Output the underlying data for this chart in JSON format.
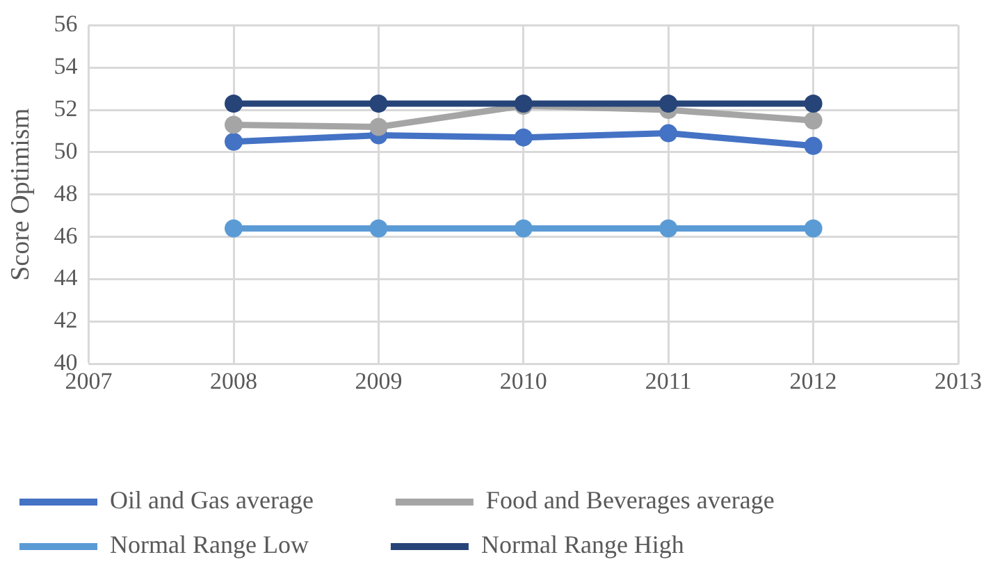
{
  "chart_data": {
    "type": "line",
    "x": [
      2008,
      2009,
      2010,
      2011,
      2012
    ],
    "ylabel": "Score Optimism",
    "xlim": [
      2007,
      2013
    ],
    "xticks": [
      2007,
      2008,
      2009,
      2010,
      2011,
      2012,
      2013
    ],
    "ylim": [
      40,
      56
    ],
    "yticks": [
      40,
      42,
      44,
      46,
      48,
      50,
      52,
      54,
      56
    ],
    "grid": true,
    "legend": "bottom",
    "marker": "circle",
    "line_style": "solid",
    "series": [
      {
        "name": "Oil and Gas average",
        "color": "#4472c4",
        "values": [
          50.5,
          50.8,
          50.7,
          50.9,
          50.3
        ]
      },
      {
        "name": "Food and Beverages average",
        "color": "#a5a5a5",
        "values": [
          51.3,
          51.2,
          52.2,
          52.0,
          51.5
        ]
      },
      {
        "name": "Normal Range Low",
        "color": "#5b9bd5",
        "values": [
          46.4,
          46.4,
          46.4,
          46.4,
          46.4
        ]
      },
      {
        "name": "Normal Range High",
        "color": "#264478",
        "values": [
          52.3,
          52.3,
          52.3,
          52.3,
          52.3
        ]
      }
    ]
  }
}
